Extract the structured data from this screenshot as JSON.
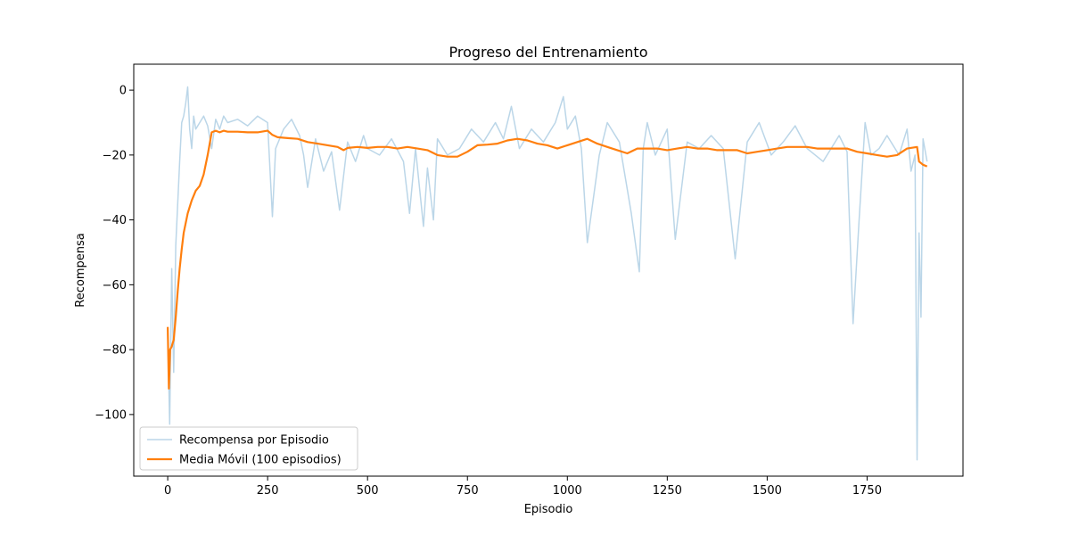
{
  "chart_data": {
    "type": "line",
    "title": "Progreso del Entrenamiento",
    "xlabel": "Episodio",
    "ylabel": "Recompensa",
    "xlim": [
      -85,
      1990
    ],
    "ylim": [
      -119,
      8
    ],
    "xticks": [
      0,
      250,
      500,
      750,
      1000,
      1250,
      1500,
      1750
    ],
    "yticks": [
      0,
      -20,
      -40,
      -60,
      -80,
      -100
    ],
    "xtick_labels": [
      "0",
      "250",
      "500",
      "750",
      "1000",
      "1250",
      "1500",
      "1750"
    ],
    "ytick_labels": [
      "0",
      "−20",
      "−40",
      "−60",
      "−80",
      "−100"
    ],
    "legend_position": "lower-left",
    "series": [
      {
        "name": "Recompensa por Episodio",
        "color": "#1f77b4",
        "alpha": 0.3,
        "x": [
          0,
          5,
          10,
          15,
          20,
          25,
          30,
          35,
          40,
          45,
          50,
          55,
          60,
          65,
          70,
          80,
          90,
          100,
          110,
          120,
          130,
          140,
          150,
          175,
          200,
          225,
          250,
          262,
          270,
          290,
          310,
          330,
          340,
          350,
          370,
          390,
          410,
          430,
          450,
          470,
          490,
          500,
          530,
          560,
          590,
          605,
          620,
          640,
          650,
          665,
          675,
          700,
          730,
          760,
          790,
          820,
          840,
          860,
          880,
          910,
          940,
          970,
          990,
          1000,
          1020,
          1035,
          1050,
          1080,
          1100,
          1130,
          1160,
          1180,
          1190,
          1200,
          1220,
          1250,
          1270,
          1300,
          1330,
          1360,
          1390,
          1420,
          1450,
          1480,
          1510,
          1540,
          1570,
          1600,
          1640,
          1680,
          1700,
          1715,
          1730,
          1745,
          1760,
          1780,
          1800,
          1830,
          1850,
          1860,
          1870,
          1875,
          1880,
          1885,
          1890,
          1900
        ],
        "y": [
          -75,
          -103,
          -55,
          -87,
          -48,
          -35,
          -22,
          -10,
          -8,
          -4,
          1,
          -12,
          -18,
          -8,
          -12,
          -10,
          -8,
          -11,
          -18,
          -9,
          -12,
          -8,
          -10,
          -9,
          -11,
          -8,
          -10,
          -39,
          -18,
          -12,
          -9,
          -14,
          -20,
          -30,
          -15,
          -25,
          -19,
          -37,
          -16,
          -22,
          -14,
          -18,
          -20,
          -15,
          -22,
          -38,
          -18,
          -42,
          -24,
          -40,
          -15,
          -20,
          -18,
          -12,
          -16,
          -10,
          -15,
          -5,
          -18,
          -12,
          -16,
          -10,
          -2,
          -12,
          -8,
          -18,
          -47,
          -20,
          -10,
          -16,
          -38,
          -56,
          -18,
          -10,
          -20,
          -12,
          -46,
          -16,
          -18,
          -14,
          -18,
          -52,
          -16,
          -10,
          -20,
          -16,
          -11,
          -18,
          -22,
          -14,
          -19,
          -72,
          -40,
          -10,
          -20,
          -18,
          -14,
          -20,
          -12,
          -25,
          -20,
          -114,
          -44,
          -70,
          -15,
          -22
        ]
      },
      {
        "name": "Media Móvil (100 episodios)",
        "color": "#ff7f0e",
        "alpha": 1.0,
        "x": [
          0,
          3,
          6,
          10,
          15,
          20,
          25,
          30,
          35,
          40,
          50,
          60,
          70,
          80,
          90,
          100,
          110,
          120,
          130,
          140,
          150,
          175,
          200,
          225,
          250,
          262,
          275,
          300,
          325,
          350,
          375,
          400,
          425,
          440,
          450,
          475,
          500,
          525,
          550,
          575,
          600,
          625,
          650,
          675,
          700,
          725,
          750,
          775,
          800,
          825,
          850,
          875,
          900,
          925,
          950,
          975,
          1000,
          1025,
          1050,
          1075,
          1100,
          1125,
          1150,
          1175,
          1200,
          1225,
          1250,
          1275,
          1300,
          1325,
          1350,
          1375,
          1400,
          1425,
          1450,
          1475,
          1500,
          1525,
          1550,
          1575,
          1600,
          1625,
          1650,
          1675,
          1700,
          1725,
          1750,
          1775,
          1800,
          1825,
          1850,
          1875,
          1880,
          1890,
          1900
        ],
        "y": [
          -73,
          -92,
          -80,
          -79,
          -77,
          -70,
          -62,
          -55,
          -49,
          -44,
          -38,
          -34,
          -31,
          -29.5,
          -26,
          -20,
          -13,
          -12.5,
          -13,
          -12.5,
          -12.8,
          -12.8,
          -13,
          -13,
          -12.5,
          -13.8,
          -14.5,
          -14.8,
          -15,
          -16,
          -16.5,
          -17,
          -17.5,
          -18.5,
          -17.8,
          -17.5,
          -17.8,
          -17.5,
          -17.5,
          -18,
          -17.5,
          -18,
          -18.5,
          -20,
          -20.5,
          -20.5,
          -19,
          -17,
          -16.8,
          -16.5,
          -15.5,
          -15,
          -15.5,
          -16.5,
          -17,
          -18,
          -17,
          -16,
          -15,
          -16.5,
          -17.5,
          -18.5,
          -19.5,
          -18,
          -18,
          -18,
          -18.5,
          -18,
          -17.5,
          -18,
          -18,
          -18.5,
          -18.5,
          -18.5,
          -19.5,
          -19,
          -18.5,
          -18,
          -17.5,
          -17.5,
          -17.5,
          -18,
          -18,
          -18,
          -18,
          -19,
          -19.5,
          -20,
          -20.5,
          -20,
          -18,
          -17.5,
          -22,
          -23,
          -23.5
        ]
      }
    ]
  }
}
